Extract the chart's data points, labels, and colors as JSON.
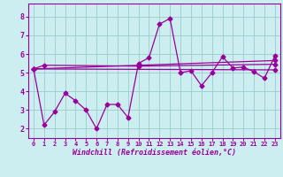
{
  "xlabel": "Windchill (Refroidissement éolien,°C)",
  "bg_color": "#cceef0",
  "grid_color": "#99cccc",
  "line_color": "#990099",
  "xlim": [
    -0.5,
    23.5
  ],
  "ylim": [
    1.5,
    8.7
  ],
  "yticks": [
    2,
    3,
    4,
    5,
    6,
    7,
    8
  ],
  "xticks": [
    0,
    1,
    2,
    3,
    4,
    5,
    6,
    7,
    8,
    9,
    10,
    11,
    12,
    13,
    14,
    15,
    16,
    17,
    18,
    19,
    20,
    21,
    22,
    23
  ],
  "series1_x": [
    0,
    1,
    2,
    3,
    4,
    5,
    6,
    7,
    8,
    9,
    10,
    11,
    12,
    13,
    14,
    15,
    16,
    17,
    18,
    19,
    20,
    21,
    22,
    23
  ],
  "series1_y": [
    5.2,
    2.2,
    2.9,
    3.9,
    3.5,
    3.0,
    2.0,
    3.3,
    3.3,
    2.6,
    5.5,
    5.8,
    7.6,
    7.9,
    5.0,
    5.1,
    4.3,
    5.0,
    5.85,
    5.25,
    5.3,
    5.05,
    4.7,
    5.9
  ],
  "series2_x": [
    0,
    1,
    10,
    23
  ],
  "series2_y": [
    5.2,
    5.4,
    5.35,
    5.45
  ],
  "series3_x": [
    0,
    23
  ],
  "series3_y": [
    5.2,
    5.65
  ],
  "series4_x": [
    0,
    23
  ],
  "series4_y": [
    5.2,
    5.15
  ]
}
